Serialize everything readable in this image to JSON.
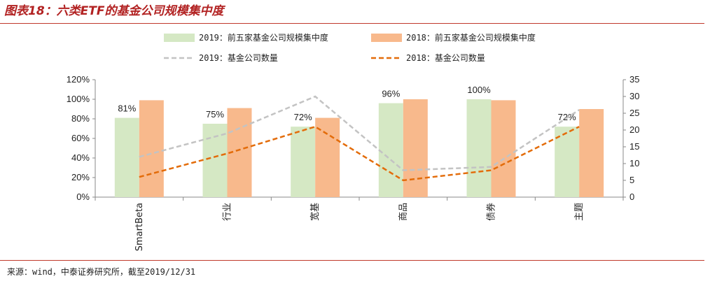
{
  "page": {
    "title": "图表18：六类ETF的基金公司规模集中度",
    "source": "来源：wind，中泰证券研究所，截至2019/12/31"
  },
  "chart_data": {
    "type": "bar",
    "categories": [
      "SmartBeta",
      "行业",
      "宽基",
      "商品",
      "债券",
      "主题"
    ],
    "series": [
      {
        "name": "2019：前五家基金公司规模集中度",
        "kind": "bar",
        "axis": "left",
        "color": "#d5e8c4",
        "values": [
          81,
          75,
          72,
          96,
          100,
          72
        ]
      },
      {
        "name": "2018：前五家基金公司规模集中度",
        "kind": "bar",
        "axis": "left",
        "color": "#f8b98c",
        "values": [
          99,
          91,
          81,
          100,
          99,
          90
        ]
      },
      {
        "name": "2019：基金公司数量",
        "kind": "line",
        "axis": "right",
        "color": "#c3c3c3",
        "values": [
          12,
          19,
          30,
          8,
          9,
          26
        ]
      },
      {
        "name": "2018：基金公司数量",
        "kind": "line",
        "axis": "right",
        "color": "#e36c0a",
        "values": [
          6,
          13,
          21,
          5,
          8,
          21
        ]
      }
    ],
    "data_labels": [
      "81%",
      "75%",
      "72%",
      "96%",
      "100%",
      "72%"
    ],
    "y_left": {
      "ticks": [
        "0%",
        "20%",
        "40%",
        "60%",
        "80%",
        "100%",
        "120%"
      ],
      "lim": [
        0,
        120
      ]
    },
    "y_right": {
      "ticks": [
        "0",
        "5",
        "10",
        "15",
        "20",
        "25",
        "30",
        "35"
      ],
      "lim": [
        0,
        35
      ]
    },
    "grid": false,
    "legend": "top"
  }
}
